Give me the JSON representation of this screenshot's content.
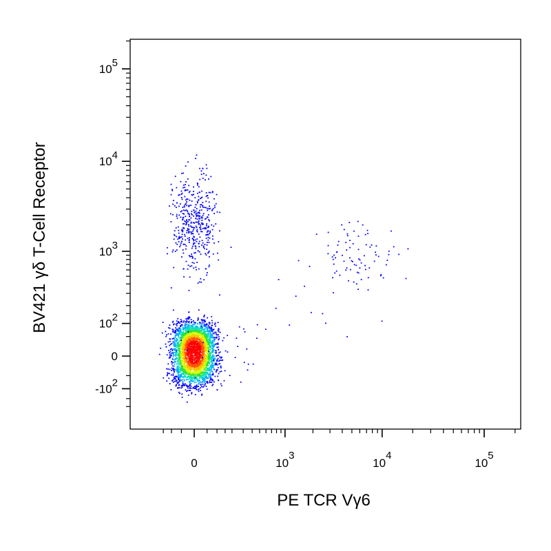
{
  "chart_data": {
    "type": "scatter",
    "subtype": "flow-cytometry-density-dot-plot",
    "xlabel": "PE TCR Vγ6",
    "ylabel": "BV421 γδ T-Cell Receptor",
    "x_scale": "biexponential",
    "y_scale": "biexponential",
    "xlim": [
      -200,
      300000
    ],
    "ylim": [
      -230,
      200000
    ],
    "grid": false,
    "legend": "none",
    "x_ticks": [
      {
        "value": 0,
        "label": "0",
        "exp": ""
      },
      {
        "value": 1000,
        "label": "10",
        "exp": "3"
      },
      {
        "value": 10000,
        "label": "10",
        "exp": "4"
      },
      {
        "value": 100000,
        "label": "10",
        "exp": "5"
      }
    ],
    "y_ticks": [
      {
        "value": -100,
        "label": "-10",
        "exp": "2"
      },
      {
        "value": 0,
        "label": "0",
        "exp": ""
      },
      {
        "value": 100,
        "label": "10",
        "exp": "2"
      },
      {
        "value": 1000,
        "label": "10",
        "exp": "3"
      },
      {
        "value": 10000,
        "label": "10",
        "exp": "4"
      },
      {
        "value": 100000,
        "label": "10",
        "exp": "5"
      }
    ],
    "populations": [
      {
        "x_center": 0,
        "y_center": 10,
        "x_spread": 45,
        "y_spread": 45,
        "event_count": 3200,
        "density_colored": true
      },
      {
        "x_center": 0,
        "y_center": 2000,
        "x_spread": 45,
        "y_spread_decades": 0.28,
        "event_count": 450,
        "density_colored": false
      },
      {
        "x_center": 6000,
        "y_center": 900,
        "x_spread_decades": 0.2,
        "y_spread_decades": 0.2,
        "event_count": 80,
        "density_colored": false
      },
      {
        "x_center": 2500,
        "y_center": 300,
        "x_spread_decades": 0.4,
        "y_spread_decades": 0.35,
        "event_count": 15,
        "density_colored": false
      },
      {
        "x_center": 150,
        "y_center": 20,
        "x_spread": 180,
        "y_spread": 40,
        "event_count": 40,
        "density_colored": false
      }
    ],
    "colors": {
      "sparse_dot": "#0000ff",
      "density_scale": [
        "#0000ff",
        "#00aaff",
        "#00e0c0",
        "#30e030",
        "#d0ff00",
        "#ffc000",
        "#ff5000",
        "#ff0000"
      ]
    }
  }
}
